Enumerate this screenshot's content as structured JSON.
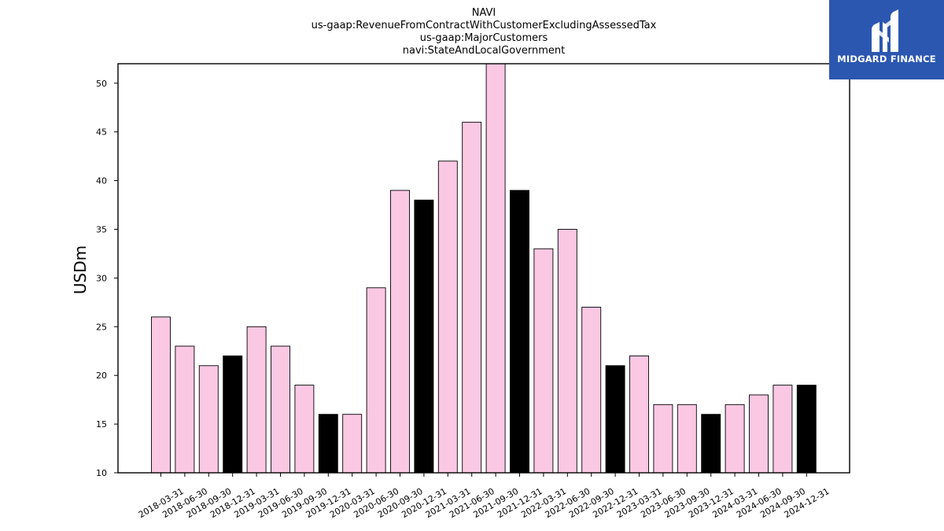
{
  "chart_data": {
    "type": "bar",
    "title": [
      "NAVI",
      "us-gaap:RevenueFromContractWithCustomerExcludingAssessedTax",
      "us-gaap:MajorCustomers",
      "navi:StateAndLocalGovernment"
    ],
    "xlabel": "",
    "ylabel": "USDm",
    "ylim": [
      10,
      52
    ],
    "yticks": [
      10,
      15,
      20,
      25,
      30,
      35,
      40,
      45,
      50
    ],
    "grid": false,
    "categories": [
      "2018-03-31",
      "2018-06-30",
      "2018-09-30",
      "2018-12-31",
      "2019-03-31",
      "2019-06-30",
      "2019-09-30",
      "2019-12-31",
      "2020-03-31",
      "2020-06-30",
      "2020-09-30",
      "2020-12-31",
      "2021-03-31",
      "2021-06-30",
      "2021-09-30",
      "2021-12-31",
      "2022-03-31",
      "2022-06-30",
      "2022-09-30",
      "2022-12-31",
      "2023-03-31",
      "2023-06-30",
      "2023-09-30",
      "2023-12-31",
      "2024-03-31",
      "2024-06-30",
      "2024-09-30",
      "2024-12-31"
    ],
    "values": [
      26,
      23,
      21,
      22,
      25,
      23,
      19,
      16,
      16,
      29,
      39,
      38,
      42,
      46,
      52,
      39,
      33,
      35,
      27,
      21,
      22,
      17,
      17,
      16,
      17,
      18,
      19,
      19
    ],
    "bar_colors": [
      "#fbc8e3",
      "#fbc8e3",
      "#fbc8e3",
      "#000000",
      "#fbc8e3",
      "#fbc8e3",
      "#fbc8e3",
      "#000000",
      "#fbc8e3",
      "#fbc8e3",
      "#fbc8e3",
      "#000000",
      "#fbc8e3",
      "#fbc8e3",
      "#fbc8e3",
      "#000000",
      "#fbc8e3",
      "#fbc8e3",
      "#fbc8e3",
      "#000000",
      "#fbc8e3",
      "#fbc8e3",
      "#fbc8e3",
      "#000000",
      "#fbc8e3",
      "#fbc8e3",
      "#fbc8e3",
      "#000000"
    ],
    "edge_color": "#000000"
  },
  "logo": {
    "text": "MIDGARD FINANCE",
    "background": "#2b57b0"
  }
}
